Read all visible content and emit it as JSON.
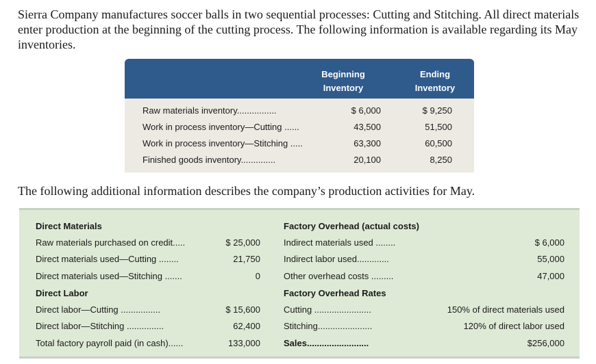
{
  "intro": "Sierra Company manufactures soccer balls in two sequential processes: Cutting and Stitching. All direct materials enter production at the beginning of the cutting process. The following information is available regarding its May inventories.",
  "inventory": {
    "headers": [
      "Beginning\nInventory",
      "Ending\nInventory"
    ],
    "header_beginning": [
      "Beginning",
      "Inventory"
    ],
    "header_ending": [
      "Ending",
      "Inventory"
    ],
    "rows": [
      {
        "label": "Raw materials inventory................",
        "begin": "$ 6,000",
        "end": "$ 9,250"
      },
      {
        "label": "Work in process inventory—Cutting ......",
        "begin": "43,500",
        "end": "51,500"
      },
      {
        "label": "Work in process inventory—Stitching .....",
        "begin": "63,300",
        "end": "60,500"
      },
      {
        "label": "Finished goods inventory..............",
        "begin": "20,100",
        "end": "8,250"
      }
    ]
  },
  "middle_text": "The following additional information describes the company’s production activities for May.",
  "additional": {
    "left": [
      {
        "label": "Direct Materials",
        "value": "",
        "heading": true
      },
      {
        "label": "Raw materials purchased on credit.....",
        "value": "$ 25,000"
      },
      {
        "label": "Direct materials used—Cutting ........",
        "value": "21,750"
      },
      {
        "label": "Direct materials used—Stitching .......",
        "value": "0"
      },
      {
        "label": "Direct Labor",
        "value": "",
        "heading": true
      },
      {
        "label": "Direct labor—Cutting ................",
        "value": "$ 15,600"
      },
      {
        "label": "Direct labor—Stitching ...............",
        "value": "62,400"
      },
      {
        "label": "Total factory payroll paid (in cash)......",
        "value": "133,000"
      }
    ],
    "right": [
      {
        "label": "Factory Overhead (actual costs)",
        "value": "",
        "heading": true
      },
      {
        "label": "Indirect materials used ........",
        "value": "$ 6,000"
      },
      {
        "label": "Indirect labor used.............",
        "value": "55,000"
      },
      {
        "label": "Other overhead costs .........",
        "value": "47,000"
      },
      {
        "label": "Factory Overhead Rates",
        "value": "",
        "heading": true
      },
      {
        "label": "Cutting .......................",
        "value": "150% of direct materials used"
      },
      {
        "label": "Stitching......................",
        "value": "120% of direct labor used"
      },
      {
        "label": "Sales.........................",
        "value": "$256,000",
        "bold_label": true
      }
    ]
  }
}
